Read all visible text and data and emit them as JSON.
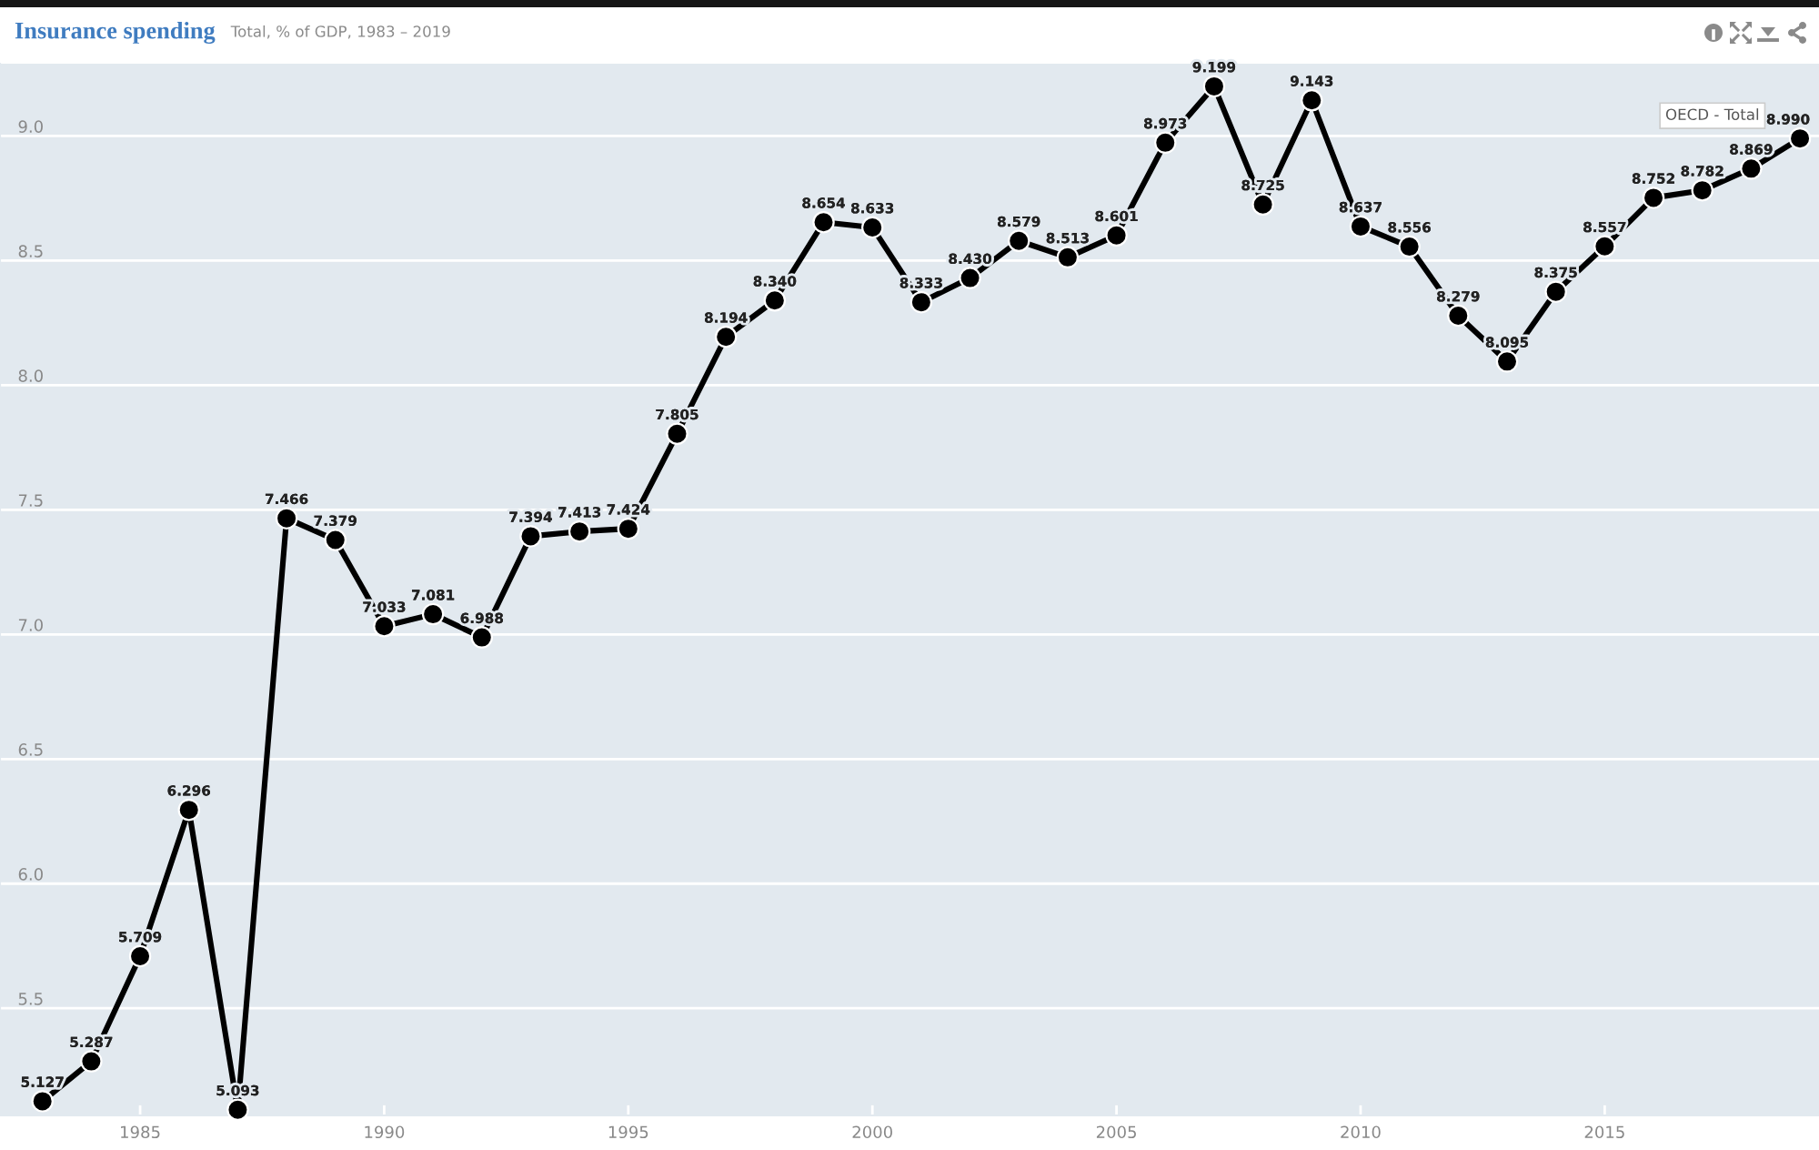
{
  "chart_data": {
    "type": "line",
    "title": "Insurance spending",
    "subtitle": "Total, % of GDP, 1983 – 2019",
    "x": [
      1983,
      1984,
      1985,
      1986,
      1987,
      1988,
      1989,
      1990,
      1991,
      1992,
      1993,
      1994,
      1995,
      1996,
      1997,
      1998,
      1999,
      2000,
      2001,
      2002,
      2003,
      2004,
      2005,
      2006,
      2007,
      2008,
      2009,
      2010,
      2011,
      2012,
      2013,
      2014,
      2015,
      2016,
      2017,
      2018,
      2019
    ],
    "series": [
      {
        "name": "OECD - Total",
        "color": "#000000",
        "values": [
          5.127,
          5.287,
          5.709,
          6.296,
          5.093,
          7.466,
          7.379,
          7.033,
          7.081,
          6.988,
          7.394,
          7.413,
          7.424,
          7.805,
          8.194,
          8.34,
          8.654,
          8.633,
          8.333,
          8.43,
          8.579,
          8.513,
          8.601,
          8.973,
          9.199,
          8.725,
          9.143,
          8.637,
          8.556,
          8.279,
          8.095,
          8.375,
          8.557,
          8.752,
          8.782,
          8.869,
          8.99
        ],
        "value_labels": [
          "5.127",
          "5.287",
          "5.709",
          "6.296",
          "5.093",
          "7.466",
          "7.379",
          "7.033",
          "7.081",
          "6.988",
          "7.394",
          "7.413",
          "7.424",
          "7.805",
          "8.194",
          "8.340",
          "8.654",
          "8.633",
          "8.333",
          "8.430",
          "8.579",
          "8.513",
          "8.601",
          "8.973",
          "9.199",
          "8.725",
          "9.143",
          "8.637",
          "8.556",
          "8.279",
          "8.095",
          "8.375",
          "8.557",
          "8.752",
          "8.782",
          "8.869",
          "8.990"
        ]
      }
    ],
    "xlim": [
      1982.13,
      2019.39
    ],
    "ylim": [
      5.07,
      9.29
    ],
    "xticks": [
      1985,
      1990,
      1995,
      2000,
      2005,
      2010,
      2015
    ],
    "yticks": [
      5.5,
      {
        "value": 6,
        "label": "6.0"
      },
      6.5,
      {
        "value": 7,
        "label": "7.0"
      },
      7.5,
      {
        "value": 8,
        "label": "8.0"
      },
      8.5,
      {
        "value": 9,
        "label": "9.0"
      }
    ],
    "grid": "y",
    "marker": "circle",
    "line_style": "solid"
  }
}
